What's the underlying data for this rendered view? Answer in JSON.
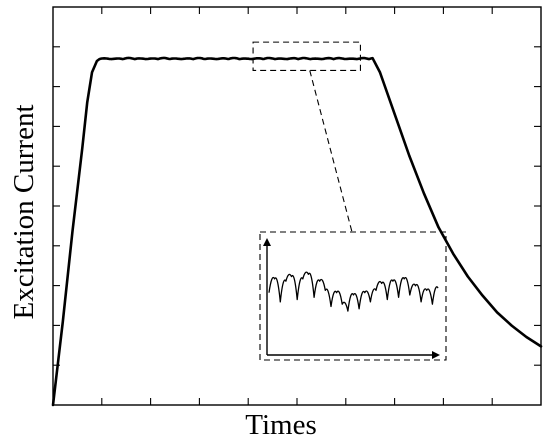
{
  "chart_data": {
    "type": "line",
    "title": "",
    "xlabel": "Times",
    "ylabel": "Excitation Current",
    "xlim": [
      0,
      100
    ],
    "ylim": [
      0,
      100
    ],
    "grid": false,
    "legend": "none",
    "x_tick_count": 10,
    "y_tick_count": 10,
    "series": [
      {
        "values": [
          [
            0,
            0
          ],
          [
            2,
            22
          ],
          [
            4,
            46
          ],
          [
            6,
            68
          ],
          [
            7,
            80
          ],
          [
            8,
            88
          ],
          [
            9,
            91
          ],
          [
            10,
            91.5
          ],
          [
            14,
            91.5
          ],
          [
            20,
            91.5
          ],
          [
            30,
            91.5
          ],
          [
            40,
            91.5
          ],
          [
            50,
            91.5
          ],
          [
            55,
            91.5
          ],
          [
            60,
            91.5
          ],
          [
            63,
            91.5
          ],
          [
            65.5,
            91.5
          ],
          [
            67,
            88
          ],
          [
            70,
            77
          ],
          [
            73,
            66
          ],
          [
            76,
            56
          ],
          [
            79,
            47
          ],
          [
            82,
            40
          ],
          [
            85,
            34
          ],
          [
            88,
            29
          ],
          [
            91,
            24.5
          ],
          [
            94,
            21
          ],
          [
            97,
            18
          ],
          [
            100,
            15.5
          ]
        ]
      }
    ],
    "ripple_amplitude": 0.6,
    "zoom_region": {
      "x": [
        41,
        63
      ],
      "y": [
        88.5,
        96
      ]
    },
    "inset": {
      "description_values": [
        0.55,
        0.85,
        0.35,
        0.8,
        0.9,
        0.4,
        0.85,
        0.95,
        0.45,
        0.8,
        0.6,
        0.25,
        0.55,
        0.3,
        0.15,
        0.5,
        0.2,
        0.55,
        0.35,
        0.6,
        0.75,
        0.4,
        0.8,
        0.45,
        0.85,
        0.5,
        0.7,
        0.35,
        0.6,
        0.3,
        0.65
      ]
    }
  }
}
